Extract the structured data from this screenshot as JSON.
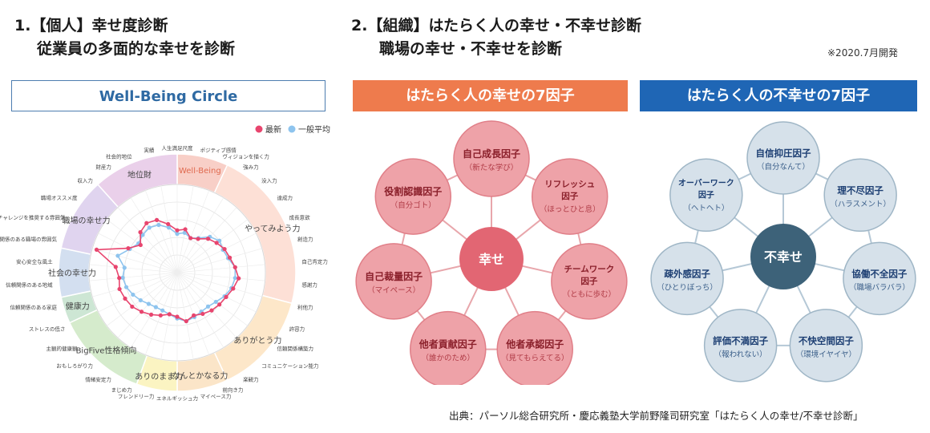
{
  "headings": {
    "left_title": "1.【個人】幸せ度診断",
    "left_subtitle": "従業員の多面的な幸せを診断",
    "right_title": "2.【組織】はたらく人の幸せ・不幸せ診断",
    "right_subtitle": "職場の幸せ・不幸せを診断",
    "note": "※2020.7月開発"
  },
  "banners": {
    "wellbeing": "Well-Being Circle",
    "happy": "はたらく人の幸せの7因子",
    "unhappy": "はたらく人の不幸せの7因子"
  },
  "source": "出典：パーソル総合研究所・慶応義塾大学前野隆司研究室「はたらく人の幸せ/不幸せ診断」",
  "radar": {
    "legend": {
      "latest": "最新",
      "average": "一般平均"
    },
    "colors": {
      "latest": "#e8456e",
      "average": "#8ec4ee"
    },
    "sectors": [
      {
        "name": "Well-Being",
        "start": 0,
        "end": 25,
        "color": "#f8cfc7",
        "text": "#e06a4f"
      },
      {
        "name": "やってみよう力",
        "start": 25,
        "end": 105,
        "color": "#fde0d6",
        "text": "#444"
      },
      {
        "name": "ありがとう力",
        "start": 105,
        "end": 155,
        "color": "#fde7c9",
        "text": "#444"
      },
      {
        "name": "なんとかなる力",
        "start": 155,
        "end": 180,
        "color": "#fbe5c8",
        "text": "#444"
      },
      {
        "name": "ありのまま力",
        "start": 180,
        "end": 200,
        "color": "#fbf4c2",
        "text": "#444"
      },
      {
        "name": "BigFive性格傾向",
        "start": 200,
        "end": 245,
        "color": "#d5ebcc",
        "text": "#444"
      },
      {
        "name": "健康力",
        "start": 245,
        "end": 258,
        "color": "#cde6d4",
        "text": "#444"
      },
      {
        "name": "社会の幸せ力",
        "start": 258,
        "end": 282,
        "color": "#d3dff0",
        "text": "#444"
      },
      {
        "name": "職場の幸せ力",
        "start": 282,
        "end": 318,
        "color": "#e0d4ef",
        "text": "#444"
      },
      {
        "name": "地位財",
        "start": 318,
        "end": 360,
        "color": "#ead0ea",
        "text": "#444"
      }
    ],
    "outer_labels": [
      "人生満足尺度",
      "ポジティブ感情",
      "ヴィジョンを描く力",
      "強み力",
      "没入力",
      "達成力",
      "成長意欲",
      "創造力",
      "自己肯定力",
      "感謝力",
      "利他力",
      "許容力",
      "信頼関係構築力",
      "コミュニケーション能力",
      "楽観力",
      "前向き力",
      "マイペース力",
      "エネルギッシュ力",
      "フレンドリー力",
      "まじめ力",
      "情緒安定力",
      "おもしろがり力",
      "主観的健康観",
      "ストレスの低さ",
      "信頼関係のある家庭",
      "信頼関係のある地域",
      "安心安全な風土",
      "信頼関係のある職場の雰囲気",
      "チャレンジを推奨する雰囲気",
      "職場オススメ度",
      "収入力",
      "財産力",
      "社会的地位",
      "実績"
    ],
    "latest_values": [
      0.48,
      0.5,
      0.42,
      0.45,
      0.52,
      0.56,
      0.6,
      0.62,
      0.66,
      0.7,
      0.66,
      0.62,
      0.6,
      0.58,
      0.55,
      0.52,
      0.56,
      0.5,
      0.48,
      0.52,
      0.56,
      0.6,
      0.64,
      0.66,
      0.68,
      0.66,
      0.7,
      0.95,
      0.62,
      0.52,
      0.62,
      0.66,
      0.64,
      0.56
    ],
    "average_values": [
      0.44,
      0.46,
      0.42,
      0.46,
      0.55,
      0.6,
      0.58,
      0.6,
      0.66,
      0.66,
      0.64,
      0.6,
      0.55,
      0.52,
      0.52,
      0.54,
      0.56,
      0.52,
      0.48,
      0.46,
      0.46,
      0.48,
      0.52,
      0.56,
      0.6,
      0.62,
      0.6,
      0.7,
      0.6,
      0.55,
      0.58,
      0.6,
      0.58,
      0.52
    ]
  },
  "happy_network": {
    "colors": {
      "center": "#e26673",
      "node": "#eea2a8",
      "node_border": "#e07f88",
      "text": "#8a1f2a",
      "sub": "#b03b46",
      "line": "#e8a6ab"
    },
    "center": "幸せ",
    "nodes": [
      {
        "title": "自己成長因子",
        "sub": "（新たな学び）"
      },
      {
        "title": "リフレッシュ因子",
        "sub": "（ほっとひと息）"
      },
      {
        "title": "チームワーク因子",
        "sub": "（ともに歩む）"
      },
      {
        "title": "他者承認因子",
        "sub": "（見てもらえてる）"
      },
      {
        "title": "他者貢献因子",
        "sub": "（誰かのため）"
      },
      {
        "title": "自己裁量因子",
        "sub": "（マイペース）"
      },
      {
        "title": "役割認識因子",
        "sub": "（自分ゴト）"
      }
    ]
  },
  "unhappy_network": {
    "colors": {
      "center": "#3d6279",
      "node": "#d6e1ea",
      "node_border": "#9fb6c6",
      "text": "#1d3f73",
      "sub": "#3b5f8a",
      "line": "#b5c8d6"
    },
    "center": "不幸せ",
    "nodes": [
      {
        "title": "自信抑圧因子",
        "sub": "（自分なんて）"
      },
      {
        "title": "理不尽因子",
        "sub": "（ハラスメント）"
      },
      {
        "title": "協働不全因子",
        "sub": "（職場バラバラ）"
      },
      {
        "title": "不快空間因子",
        "sub": "（環境イヤイヤ）"
      },
      {
        "title": "評価不満因子",
        "sub": "（報われない）"
      },
      {
        "title": "疎外感因子",
        "sub": "（ひとりぼっち）"
      },
      {
        "title": "オーバーワーク因子",
        "sub": "（ヘトヘト）"
      }
    ]
  }
}
